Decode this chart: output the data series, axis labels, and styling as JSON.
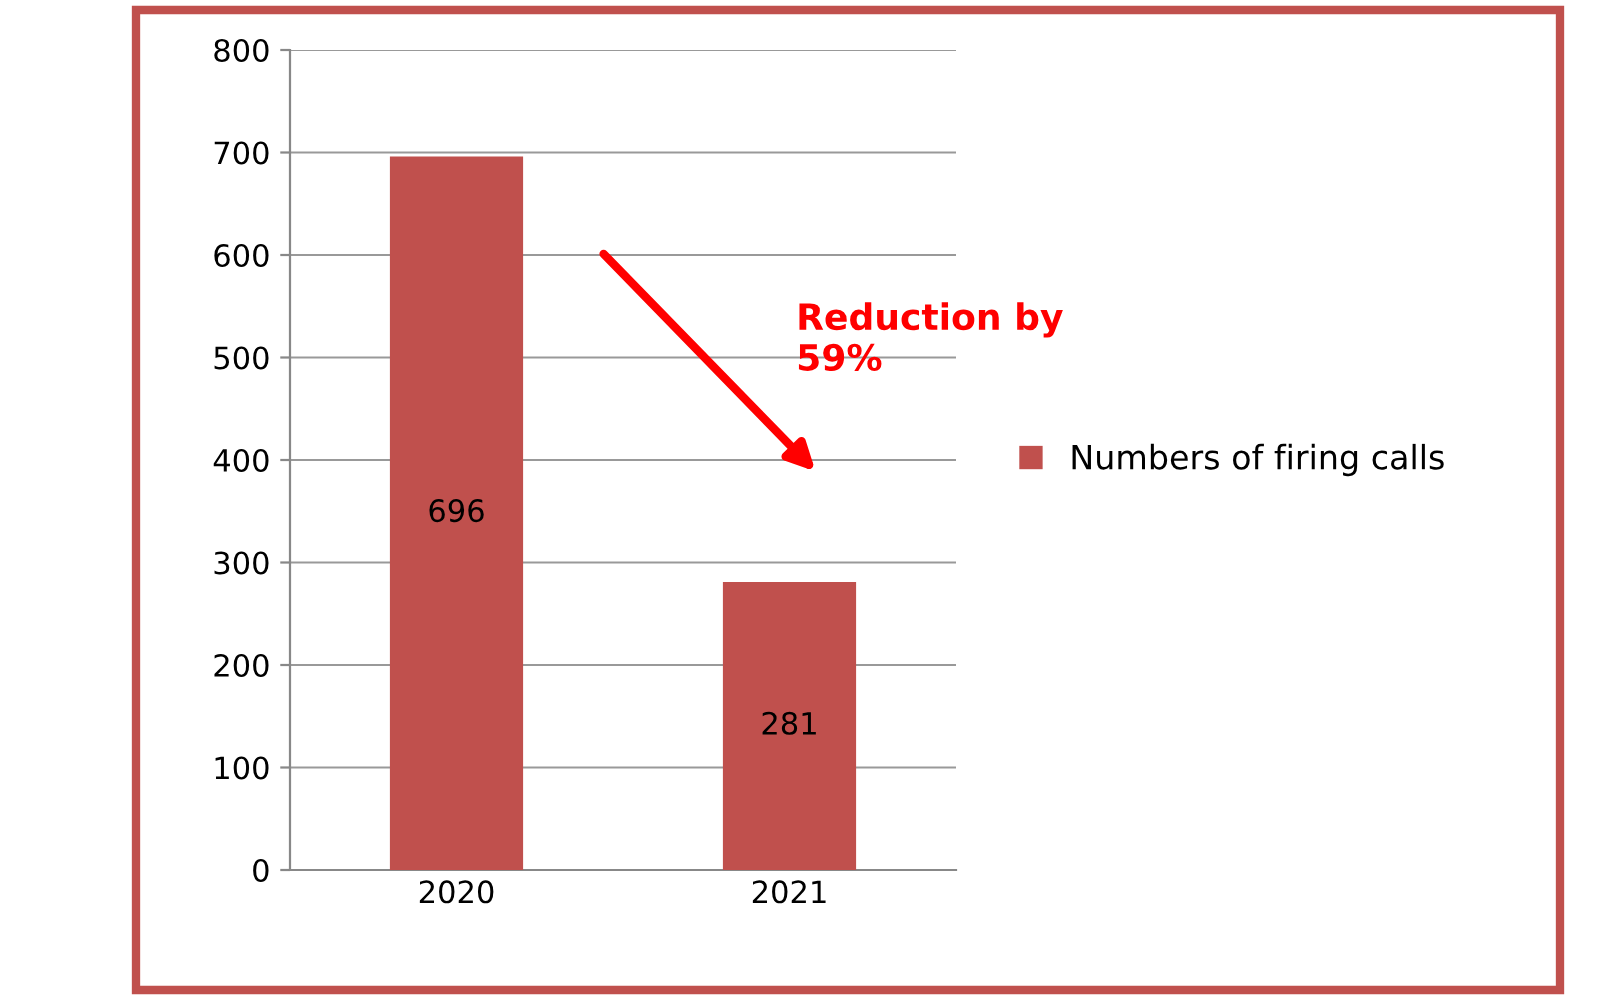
{
  "chart_data": {
    "type": "bar",
    "categories": [
      "2020",
      "2021"
    ],
    "series": [
      {
        "name": "Numbers of firing calls",
        "color": "#c0504d",
        "values": [
          696,
          281
        ]
      }
    ],
    "ylim": [
      0,
      800
    ],
    "yticks": [
      0,
      100,
      200,
      300,
      400,
      500,
      600,
      700,
      800
    ],
    "grid": "y",
    "legend": "right",
    "data_labels": true,
    "annotations": [
      "Reduction by\n59%"
    ]
  }
}
